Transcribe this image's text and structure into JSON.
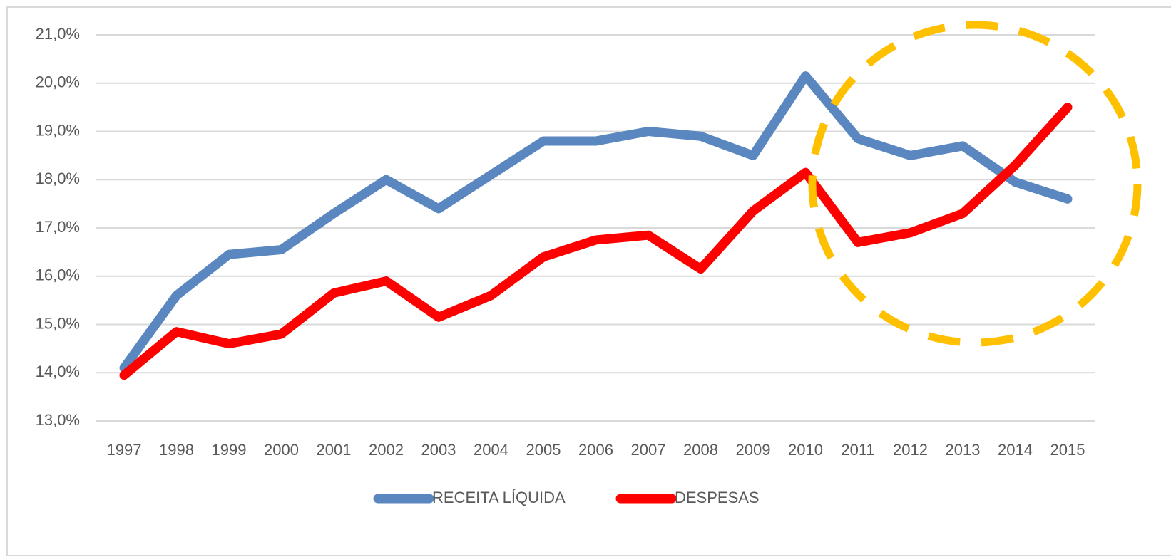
{
  "chart_data": {
    "type": "line",
    "categories": [
      "1997",
      "1998",
      "1999",
      "2000",
      "2001",
      "2002",
      "2003",
      "2004",
      "2005",
      "2006",
      "2007",
      "2008",
      "2009",
      "2010",
      "2011",
      "2012",
      "2013",
      "2014",
      "2015"
    ],
    "series": [
      {
        "name": "RECEITA LÍQUIDA",
        "color": "#5b87c0",
        "values": [
          14.1,
          15.6,
          16.45,
          16.55,
          17.3,
          18.0,
          17.4,
          18.1,
          18.8,
          18.8,
          19.0,
          18.9,
          18.5,
          20.15,
          18.85,
          18.5,
          18.7,
          17.95,
          17.6
        ]
      },
      {
        "name": "DESPESAS",
        "color": "#ff0000",
        "values": [
          13.95,
          14.85,
          14.6,
          14.8,
          15.65,
          15.9,
          15.15,
          15.6,
          16.4,
          16.75,
          16.85,
          16.15,
          17.35,
          18.15,
          16.7,
          16.9,
          17.3,
          18.3,
          19.5
        ]
      }
    ],
    "ylim": [
      13,
      21
    ],
    "yticks": [
      {
        "value": 13,
        "label": "13,0%"
      },
      {
        "value": 14,
        "label": "14,0%"
      },
      {
        "value": 15,
        "label": "15,0%"
      },
      {
        "value": 16,
        "label": "16,0%"
      },
      {
        "value": 17,
        "label": "17,0%"
      },
      {
        "value": 18,
        "label": "18,0%"
      },
      {
        "value": 19,
        "label": "19,0%"
      },
      {
        "value": 20,
        "label": "20,0%"
      },
      {
        "value": 21,
        "label": "21,0%"
      }
    ],
    "grid": true,
    "legend": "bottom"
  }
}
